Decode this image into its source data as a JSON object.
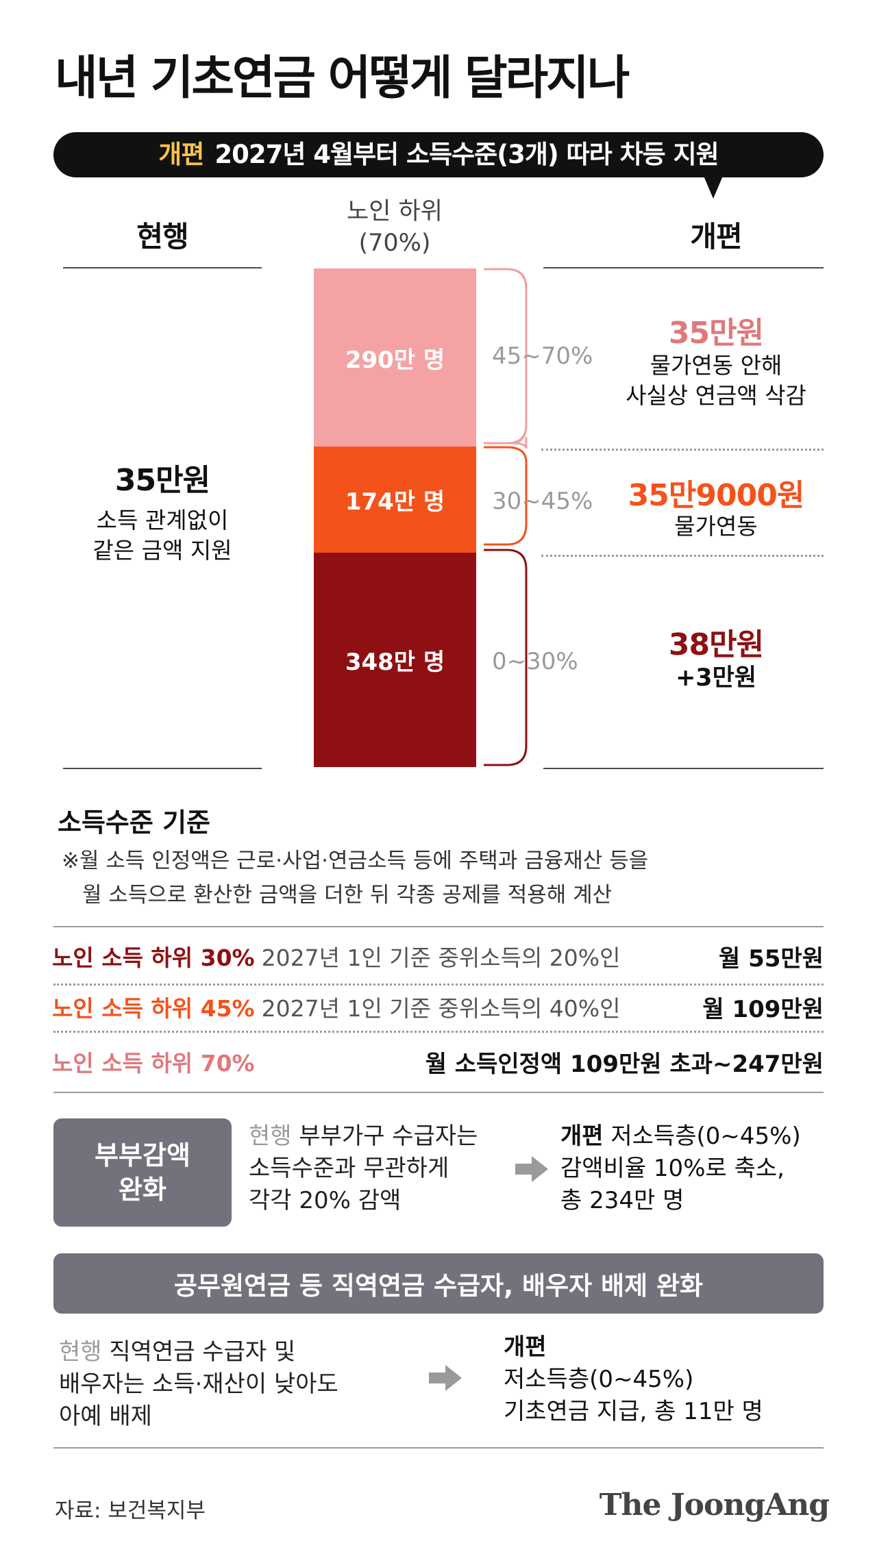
{
  "title": "내년 기초연금 어떻게 달라지나",
  "banner": {
    "highlight": "개편",
    "text": "2027년 4월부터 소득수준(3개) 따라 차등 지원"
  },
  "columns": {
    "current": "현행",
    "middle_line1": "노인 하위",
    "middle_line2": "(70%)",
    "reform": "개편"
  },
  "current": {
    "amount": "35만원",
    "desc_line1": "소득 관계없이",
    "desc_line2": "같은 금액 지원"
  },
  "tiers": [
    {
      "people": "290만 명",
      "range": "45~70%",
      "amount": "35만원",
      "desc_line1": "물가연동 안해",
      "desc_line2": "사실상 연금액 삭감",
      "color": "#f4a2a4",
      "amount_color": "#e0787c"
    },
    {
      "people": "174만 명",
      "range": "30~45%",
      "amount": "35만9000원",
      "desc_line1": "물가연동",
      "desc_line2": "",
      "color": "#f4521b",
      "amount_color": "#f4521b"
    },
    {
      "people": "348만 명",
      "range": "0~30%",
      "amount": "38만원",
      "desc_line1": "+3만원",
      "desc_line2": "",
      "color": "#8e1012",
      "amount_color": "#8e1012"
    }
  ],
  "criteria": {
    "heading": "소득수준 기준",
    "note_line1": "※월 소득 인정액은 근로·사업·연금소득 등에 주택과 금융재산 등을",
    "note_line2": "월 소득으로 환산한 금액을 더한 뒤 각종 공제를 적용해 계산",
    "rows": [
      {
        "label": "노인 소득 하위 30%",
        "standard": "2027년 1인 기준 중위소득의 20%인",
        "value": "월 55만원",
        "color": "#8e1012"
      },
      {
        "label": "노인 소득 하위 45%",
        "standard": "2027년 1인 기준 중위소득의 40%인",
        "value": "월 109만원",
        "color": "#f4521b"
      },
      {
        "label": "노인 소득 하위 70%",
        "standard": "",
        "value": "월 소득인정액 109만원 초과~247만원",
        "color": "#e0787c"
      }
    ]
  },
  "couple": {
    "box_line1": "부부감액",
    "box_line2": "완화",
    "current_label": "현행",
    "current_line1": "부부가구 수급자는",
    "current_line2": "소득수준과 무관하게",
    "current_line3": "각각 20% 감액",
    "reform_label": "개편",
    "reform_line1": "저소득층(0~45%)",
    "reform_line2": "감액비율 10%로 축소,",
    "reform_line3": "총 234만 명"
  },
  "occupational": {
    "heading": "공무원연금 등 직역연금 수급자, 배우자 배제 완화",
    "current_label": "현행",
    "current_line1": "직역연금 수급자 및",
    "current_line2": "배우자는 소득·재산이 낮아도",
    "current_line3": "아예 배제",
    "reform_label": "개편",
    "reform_line1": "저소득층(0~45%)",
    "reform_line2": "기초연금 지급, 총 11만 명"
  },
  "footer": {
    "source": "자료: 보건복지부",
    "logo": "The JoongAng"
  }
}
